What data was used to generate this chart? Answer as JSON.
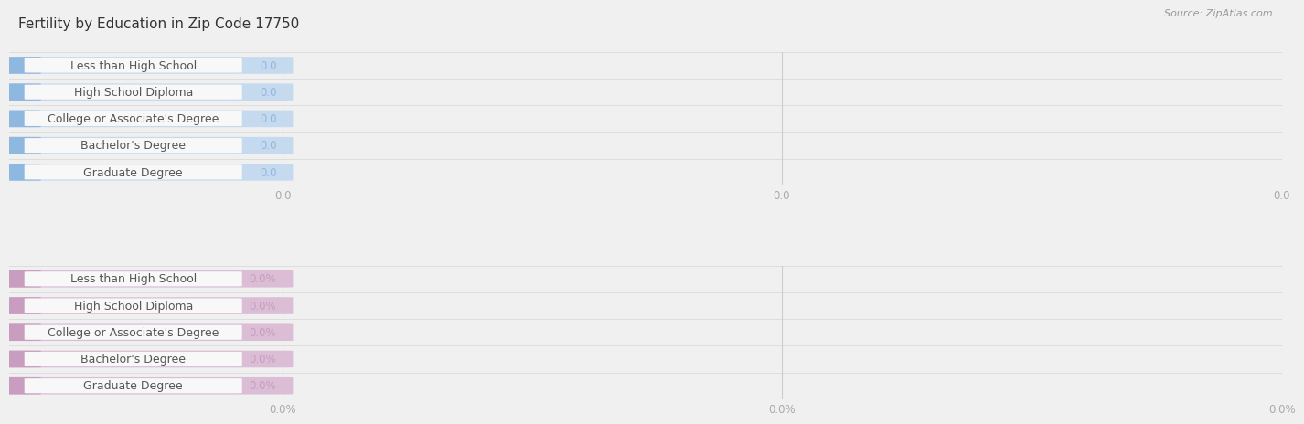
{
  "title": "Fertility by Education in Zip Code 17750",
  "source": "Source: ZipAtlas.com",
  "categories": [
    "Less than High School",
    "High School Diploma",
    "College or Associate's Degree",
    "Bachelor's Degree",
    "Graduate Degree"
  ],
  "top_values": [
    0.0,
    0.0,
    0.0,
    0.0,
    0.0
  ],
  "bottom_values": [
    0.0,
    0.0,
    0.0,
    0.0,
    0.0
  ],
  "top_bar_accent": "#8fb8e0",
  "top_bar_bg": "#c5d9ef",
  "top_inner_bg": "#e8f1f8",
  "top_value_color": "#8fb8e0",
  "bottom_bar_accent": "#c99dbf",
  "bottom_bar_bg": "#dbbdd6",
  "bottom_inner_bg": "#f0e4ef",
  "bottom_value_color": "#c99dbf",
  "label_text_color": "#555555",
  "bg_color": "#f0f0f0",
  "row_sep_color": "#dddddd",
  "title_color": "#333333",
  "source_color": "#999999",
  "x_tick_color": "#aaaaaa",
  "grid_color": "#cccccc",
  "top_xtick_labels": [
    "0.0",
    "0.0",
    "0.0"
  ],
  "bottom_xtick_labels": [
    "0.0%",
    "0.0%",
    "0.0%"
  ],
  "bar_value_format_top": "0.0",
  "bar_value_format_bottom": "0.0%",
  "title_fontsize": 11,
  "source_fontsize": 8,
  "label_fontsize": 9,
  "value_fontsize": 8.5,
  "tick_fontsize": 8.5
}
